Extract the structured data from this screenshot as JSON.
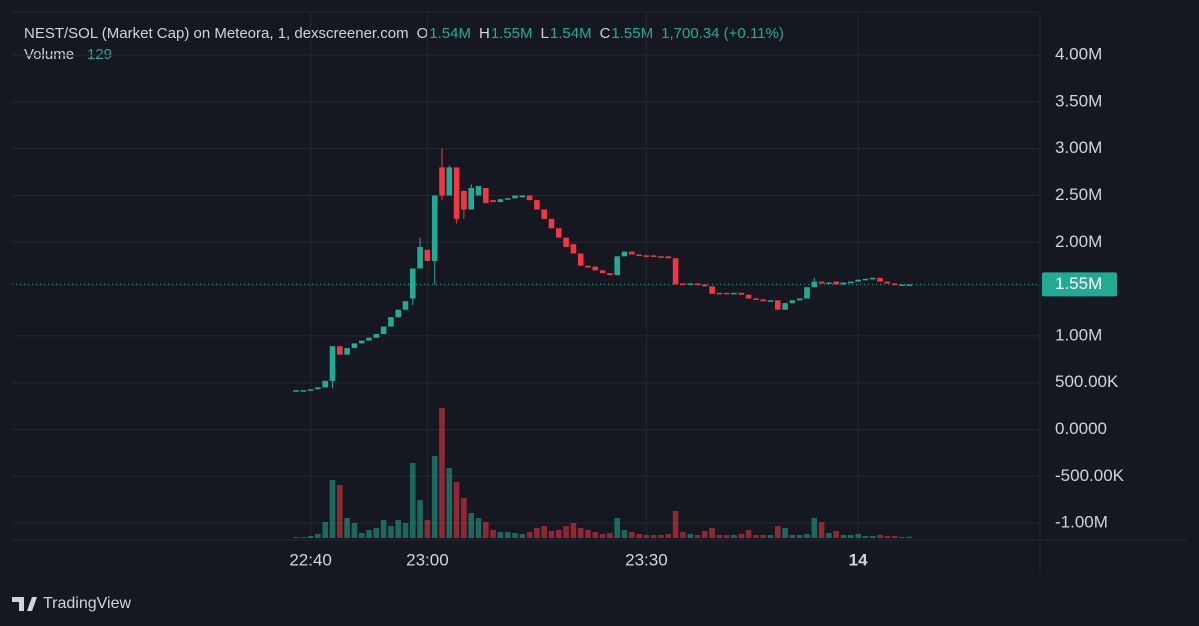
{
  "chart_data": {
    "type": "candlestick",
    "title": "NEST/SOL (Market Cap) on Meteora, 1, dexscreener.com",
    "ohlc_labels": [
      "O",
      "H",
      "L",
      "C"
    ],
    "ohlc_values": [
      "1.54M",
      "1.55M",
      "1.54M",
      "1.55M"
    ],
    "change": "1,700.34 (+0.11%)",
    "volume_label": "Volume",
    "up_color": "#22ab94",
    "down_color": "#f23645",
    "grid": true,
    "categories": [
      null,
      null,
      "22:40",
      null,
      null,
      null,
      null,
      null,
      null,
      null,
      null,
      null,
      null,
      null,
      null,
      null,
      null,
      null,
      "23:00",
      null,
      null,
      null,
      null,
      null,
      null,
      null,
      null,
      null,
      null,
      null,
      null,
      null,
      null,
      null,
      null,
      null,
      null,
      null,
      null,
      null,
      null,
      null,
      null,
      null,
      null,
      null,
      null,
      null,
      "23:30",
      null,
      null,
      null,
      null,
      null,
      null,
      null,
      null,
      null,
      null,
      null,
      null,
      null,
      null,
      null,
      null,
      null,
      null,
      null,
      null,
      null,
      null,
      null,
      null,
      null,
      null,
      null,
      null,
      "14",
      null,
      null,
      null,
      null,
      null,
      null,
      null
    ],
    "open": [
      420000,
      420000,
      420000,
      430000,
      450000,
      520000,
      890000,
      800000,
      870000,
      920000,
      950000,
      980000,
      1020000,
      1100000,
      1200000,
      1280000,
      1400000,
      1720000,
      1920000,
      1800000,
      2800000,
      2500000,
      2800000,
      2550000,
      2350000,
      2500000,
      2580000,
      2450000,
      2430000,
      2460000,
      2470000,
      2480000,
      2500000,
      2450000,
      2350000,
      2250000,
      2150000,
      2050000,
      1980000,
      1880000,
      1750000,
      1740000,
      1700000,
      1670000,
      1650000,
      1850000,
      1900000,
      1870000,
      1860000,
      1860000,
      1850000,
      1850000,
      1830000,
      1560000,
      1550000,
      1560000,
      1550000,
      1530000,
      1460000,
      1460000,
      1450000,
      1460000,
      1440000,
      1400000,
      1390000,
      1370000,
      1380000,
      1280000,
      1350000,
      1380000,
      1400000,
      1520000,
      1580000,
      1560000,
      1580000,
      1550000,
      1570000,
      1580000,
      1600000,
      1610000,
      1620000,
      1580000,
      1560000,
      1540000,
      1540000
    ],
    "high": [
      420000,
      420000,
      430000,
      450000,
      520000,
      890000,
      890000,
      870000,
      920000,
      950000,
      980000,
      1020000,
      1100000,
      1200000,
      1280000,
      1370000,
      1720000,
      2050000,
      1920000,
      2500000,
      3000000,
      2820000,
      2800000,
      2550000,
      2620000,
      2600000,
      2580000,
      2450000,
      2460000,
      2470000,
      2500000,
      2500000,
      2500000,
      2450000,
      2350000,
      2250000,
      2150000,
      2050000,
      1980000,
      1880000,
      1750000,
      1740000,
      1700000,
      1670000,
      1850000,
      1900000,
      1900000,
      1870000,
      1860000,
      1860000,
      1850000,
      1850000,
      1830000,
      1560000,
      1560000,
      1560000,
      1550000,
      1530000,
      1460000,
      1460000,
      1460000,
      1460000,
      1440000,
      1400000,
      1390000,
      1380000,
      1380000,
      1350000,
      1380000,
      1400000,
      1520000,
      1620000,
      1580000,
      1570000,
      1580000,
      1570000,
      1580000,
      1600000,
      1610000,
      1620000,
      1620000,
      1580000,
      1560000,
      1550000,
      1550000
    ],
    "low": [
      420000,
      420000,
      420000,
      430000,
      450000,
      440000,
      800000,
      800000,
      870000,
      920000,
      950000,
      980000,
      1020000,
      1100000,
      1200000,
      1280000,
      1330000,
      1720000,
      1800000,
      1550000,
      2450000,
      2500000,
      2200000,
      2250000,
      2350000,
      2500000,
      2420000,
      2430000,
      2430000,
      2460000,
      2470000,
      2480000,
      2450000,
      2350000,
      2250000,
      2150000,
      2050000,
      1950000,
      1880000,
      1750000,
      1730000,
      1700000,
      1670000,
      1650000,
      1650000,
      1850000,
      1870000,
      1860000,
      1850000,
      1850000,
      1840000,
      1830000,
      1550000,
      1550000,
      1550000,
      1550000,
      1530000,
      1450000,
      1450000,
      1450000,
      1450000,
      1440000,
      1400000,
      1390000,
      1370000,
      1370000,
      1280000,
      1280000,
      1350000,
      1380000,
      1400000,
      1520000,
      1560000,
      1560000,
      1550000,
      1550000,
      1570000,
      1580000,
      1600000,
      1610000,
      1580000,
      1560000,
      1550000,
      1540000,
      1540000
    ],
    "close": [
      420000,
      420000,
      430000,
      450000,
      520000,
      890000,
      800000,
      870000,
      920000,
      950000,
      980000,
      1020000,
      1100000,
      1200000,
      1280000,
      1370000,
      1720000,
      1950000,
      1800000,
      2500000,
      2500000,
      2800000,
      2250000,
      2350000,
      2580000,
      2600000,
      2420000,
      2430000,
      2460000,
      2470000,
      2500000,
      2500000,
      2450000,
      2350000,
      2250000,
      2150000,
      2050000,
      1950000,
      1880000,
      1750000,
      1730000,
      1700000,
      1670000,
      1650000,
      1850000,
      1900000,
      1870000,
      1860000,
      1850000,
      1850000,
      1840000,
      1830000,
      1550000,
      1550000,
      1560000,
      1550000,
      1530000,
      1450000,
      1450000,
      1450000,
      1460000,
      1440000,
      1400000,
      1390000,
      1370000,
      1380000,
      1280000,
      1350000,
      1380000,
      1400000,
      1520000,
      1580000,
      1560000,
      1570000,
      1550000,
      1570000,
      1580000,
      1600000,
      1610000,
      1620000,
      1580000,
      1560000,
      1550000,
      1550000,
      1550000
    ],
    "volume": [
      100,
      100,
      200,
      400,
      1600,
      5800,
      5300,
      2000,
      1500,
      500,
      800,
      1000,
      1800,
      1200,
      1800,
      1500,
      7500,
      3800,
      1800,
      8200,
      13000,
      7000,
      5600,
      4000,
      2500,
      2000,
      1600,
      800,
      600,
      600,
      500,
      400,
      600,
      1000,
      1200,
      700,
      800,
      1200,
      1500,
      1000,
      800,
      600,
      400,
      500,
      2000,
      800,
      600,
      400,
      300,
      300,
      300,
      400,
      2700,
      600,
      400,
      300,
      700,
      1000,
      300,
      300,
      300,
      400,
      800,
      300,
      300,
      300,
      1200,
      1000,
      300,
      300,
      400,
      2000,
      1600,
      500,
      700,
      300,
      300,
      400,
      200,
      200,
      300,
      200,
      200,
      100,
      129
    ],
    "ylim": [
      -1180000,
      4460000
    ],
    "yticks": [
      {
        "value": -1000000,
        "label": "-1.00M"
      },
      {
        "value": -500000,
        "label": "-500.00K"
      },
      {
        "value": 0,
        "label": "0.0000"
      },
      {
        "value": 500000,
        "label": "500.00K"
      },
      {
        "value": 1000000,
        "label": "1.00M"
      },
      {
        "value": 2000000,
        "label": "2.00M"
      },
      {
        "value": 2500000,
        "label": "2.50M"
      },
      {
        "value": 3000000,
        "label": "3.00M"
      },
      {
        "value": 3500000,
        "label": "3.50M"
      },
      {
        "value": 4000000,
        "label": "4.00M"
      }
    ],
    "last_price": {
      "value": 1550000,
      "label": "1.55M"
    },
    "branding": "TradingView"
  }
}
